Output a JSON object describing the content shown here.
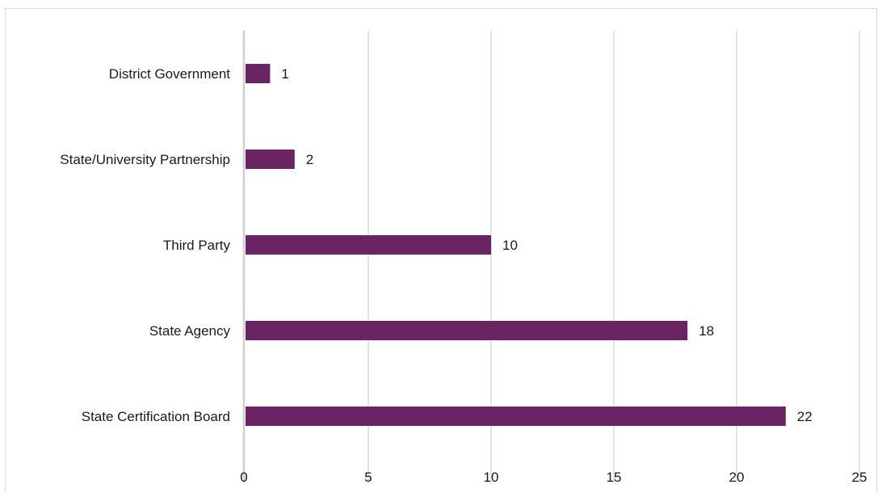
{
  "chart_data": {
    "type": "bar",
    "orientation": "horizontal",
    "categories": [
      "District Government",
      "State/University Partnership",
      "Third Party",
      "State Agency",
      "State Certification Board"
    ],
    "values": [
      1,
      2,
      10,
      18,
      22
    ],
    "data_labels": [
      "1",
      "2",
      "10",
      "18",
      "22"
    ],
    "xlim": [
      0,
      25
    ],
    "x_ticks": [
      "0",
      "5",
      "10",
      "15",
      "20",
      "25"
    ],
    "grid": "vertical",
    "bar_color": "#6a2464",
    "title": "",
    "xlabel": "",
    "ylabel": ""
  }
}
